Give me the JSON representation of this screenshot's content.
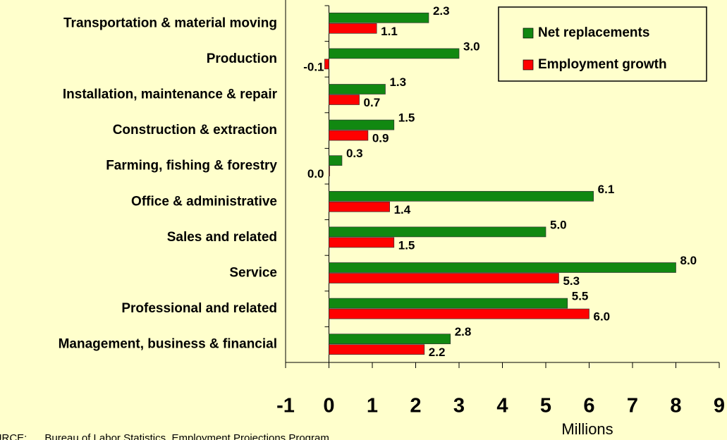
{
  "chart_data": {
    "type": "hbar",
    "categories": [
      "Transportation & material moving",
      "Production",
      "Installation, maintenance & repair",
      "Construction & extraction",
      "Farming, fishing & forestry",
      "Office & administrative",
      "Sales and related",
      "Service",
      "Professional and related",
      "Management, business & financial"
    ],
    "series": [
      {
        "name": "Net replacements",
        "color": "#118811",
        "values": [
          2.3,
          3.0,
          1.3,
          1.5,
          0.3,
          6.1,
          5.0,
          8.0,
          5.5,
          2.8
        ],
        "value_labels": [
          "2.3",
          "3.0",
          "1.3",
          "1.5",
          "0.3",
          "6.1",
          "5.0",
          "8.0",
          "5.5",
          "2.8"
        ]
      },
      {
        "name": "Employment growth",
        "color": "#ff0000",
        "values": [
          1.1,
          -0.1,
          0.7,
          0.9,
          0.0,
          1.4,
          1.5,
          5.3,
          6.0,
          2.2
        ],
        "value_labels": [
          "1.1",
          "-0.1",
          "0.7",
          "0.9",
          "0.0",
          "1.4",
          "1.5",
          "5.3",
          "6.0",
          "2.2"
        ]
      }
    ],
    "xlim": [
      -1,
      9
    ],
    "xticks": [
      -1,
      0,
      1,
      2,
      3,
      4,
      5,
      6,
      7,
      8,
      9
    ],
    "xlabel": "Millions",
    "source": "SOURCE:      Bureau of Labor Statistics, Employment Projections Program",
    "legend": "upper right"
  }
}
